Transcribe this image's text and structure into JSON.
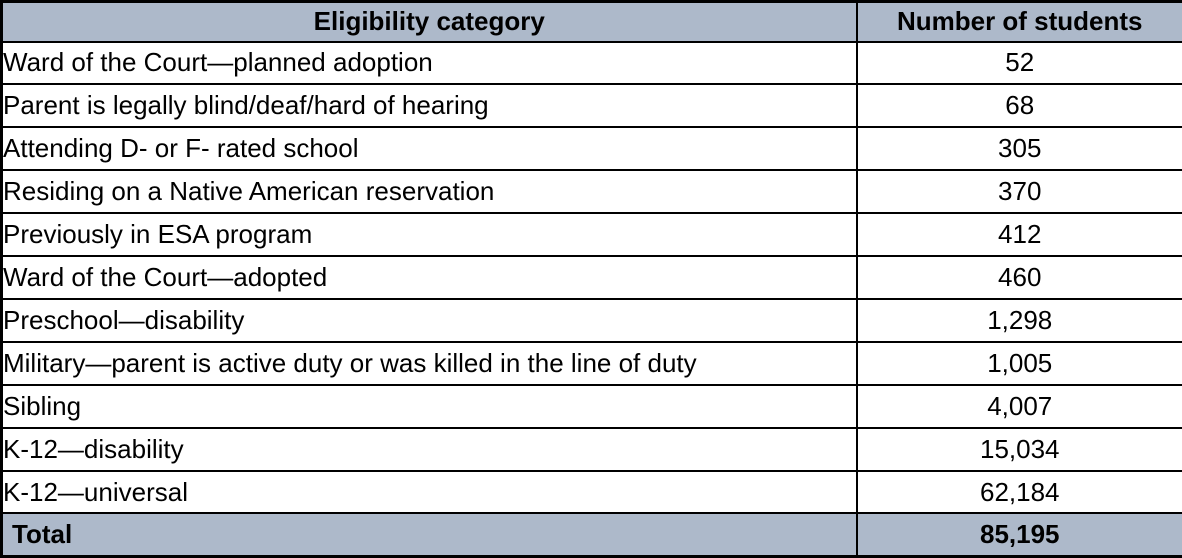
{
  "colors": {
    "header_bg": "#ADB9CA",
    "total_bg": "#ADB9CA",
    "border": "#000000",
    "text": "#000000",
    "row_bg": "#FFFFFF"
  },
  "table": {
    "headers": {
      "category": "Eligibility category",
      "students": "Number of students"
    },
    "rows": [
      {
        "category": "Ward of the Court—planned adoption",
        "students": "52"
      },
      {
        "category": "Parent is legally blind/deaf/hard of hearing",
        "students": "68"
      },
      {
        "category": "Attending D- or F- rated school",
        "students": "305"
      },
      {
        "category": "Residing on a Native American reservation",
        "students": "370"
      },
      {
        "category": "Previously in ESA program",
        "students": "412"
      },
      {
        "category": "Ward of the Court—adopted",
        "students": "460"
      },
      {
        "category": "Preschool—disability",
        "students": "1,298"
      },
      {
        "category": "Military—parent is active duty or was killed in the line of duty",
        "students": "1,005"
      },
      {
        "category": "Sibling",
        "students": "4,007"
      },
      {
        "category": "K-12—disability",
        "students": "15,034"
      },
      {
        "category": "K-12—universal",
        "students": "62,184"
      }
    ],
    "total": {
      "label": "Total",
      "students": "85,195"
    }
  },
  "chart_data": {
    "type": "table",
    "columns": [
      "Eligibility category",
      "Number of students"
    ],
    "rows": [
      [
        "Ward of the Court—planned adoption",
        52
      ],
      [
        "Parent is legally blind/deaf/hard of hearing",
        68
      ],
      [
        "Attending D- or F- rated school",
        305
      ],
      [
        "Residing on a Native American reservation",
        370
      ],
      [
        "Previously in ESA program",
        412
      ],
      [
        "Ward of the Court—adopted",
        460
      ],
      [
        "Preschool—disability",
        1298
      ],
      [
        "Military—parent is active duty or was killed in the line of duty",
        1005
      ],
      [
        "Sibling",
        4007
      ],
      [
        "K-12—disability",
        15034
      ],
      [
        "K-12—universal",
        62184
      ]
    ],
    "total": [
      "Total",
      85195
    ]
  }
}
